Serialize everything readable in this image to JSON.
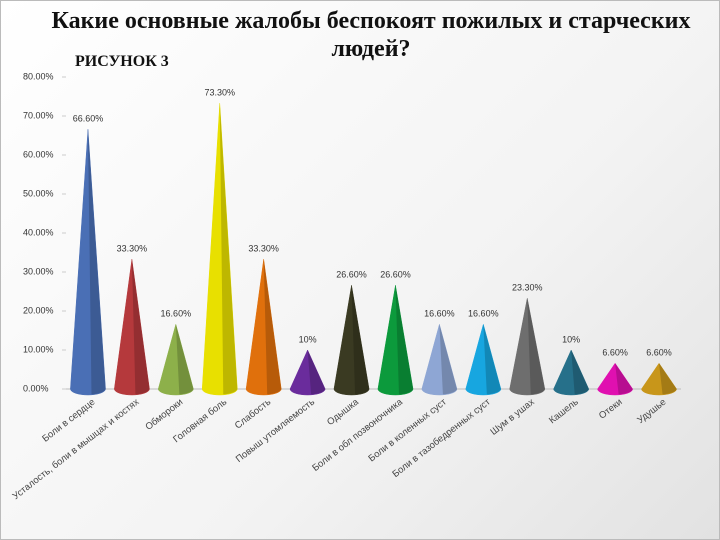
{
  "chart_data": {
    "type": "cone",
    "title": "Какие основные жалобы беспокоят пожилых и старческих людей?",
    "subtitle": "РИСУНОК 3",
    "categories": [
      "Боли в сердце",
      "Усталость, боли в мышцах и костях",
      "Обмороки",
      "Головная боль",
      "Слабость",
      "Повыш утомляемость",
      "Одышка",
      "Боли в обл позвоночника",
      "Боли в коленных суст",
      "Боли в тазобедренных суст",
      "Шум в ушах",
      "Кашель",
      "Отеки",
      "Удушье"
    ],
    "values": [
      66.6,
      33.3,
      16.6,
      73.3,
      33.3,
      10,
      26.6,
      26.6,
      16.6,
      16.6,
      23.3,
      10,
      6.6,
      6.6
    ],
    "value_labels": [
      "66.60%",
      "33.30%",
      "16.60%",
      "73.30%",
      "33.30%",
      "10%",
      "26.60%",
      "26.60%",
      "16.60%",
      "16.60%",
      "23.30%",
      "10%",
      "6.60%",
      "6.60%"
    ],
    "colors": [
      "#4a6fb5",
      "#b5393c",
      "#8db04a",
      "#e8e000",
      "#e0700c",
      "#6a2c9c",
      "#3a3a22",
      "#0c9a3c",
      "#8ea6d4",
      "#17a6e0",
      "#6e6e6e",
      "#26708a",
      "#e010b0",
      "#c8961a"
    ],
    "ylim": [
      0,
      80
    ],
    "yticks": [
      {
        "value": 0,
        "label": "0.00%"
      },
      {
        "value": 10,
        "label": "10.00%"
      },
      {
        "value": 20,
        "label": "20.00%"
      },
      {
        "value": 30,
        "label": "30.00%"
      },
      {
        "value": 40,
        "label": "40.00%"
      },
      {
        "value": 50,
        "label": "50.00%"
      },
      {
        "value": 60,
        "label": "60.00%"
      },
      {
        "value": 70,
        "label": "70.00%"
      },
      {
        "value": 80,
        "label": "80.00%"
      }
    ]
  }
}
